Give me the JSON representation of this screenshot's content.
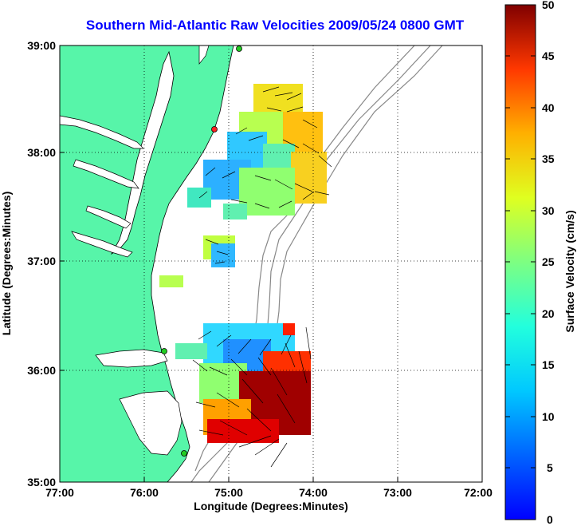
{
  "title": "Southern Mid-Atlantic Raw Velocities 2009/05/24 0800 GMT",
  "xaxis": {
    "label": "Longitude (Degrees:Minutes)",
    "ticks": [
      "77:00",
      "76:00",
      "75:00",
      "74:00",
      "73:00",
      "72:00"
    ]
  },
  "yaxis": {
    "label": "Latitude (Degrees:Minutes)",
    "ticks": [
      "39:00",
      "38:00",
      "37:00",
      "36:00",
      "35:00"
    ]
  },
  "colorbar": {
    "label": "Surface Velocity (cm/s)",
    "ticks": [
      "50",
      "45",
      "40",
      "35",
      "30",
      "25",
      "20",
      "15",
      "10",
      "5",
      "0"
    ],
    "min": 0,
    "max": 50
  },
  "colors": {
    "land": "#57f5a9",
    "water": "#ffffff",
    "title": "#0000ff",
    "coast_line": "#000000",
    "isobath": "#888888",
    "station_green": "#22cc22",
    "station_red": "#ff2222"
  },
  "map": {
    "lon_range": [
      -77,
      -72
    ],
    "lat_range": [
      35,
      39
    ],
    "grid": true
  }
}
